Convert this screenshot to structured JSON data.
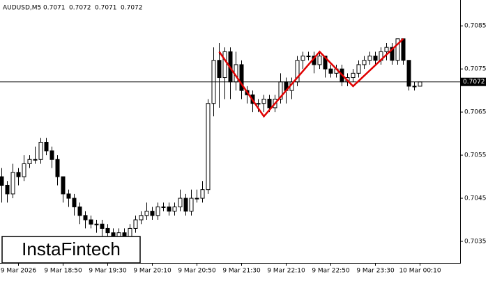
{
  "chart_data": {
    "type": "candlestick",
    "title": "AUDUSD,M5",
    "header_values": [
      0.7071,
      0.7072,
      0.7071,
      0.7072
    ],
    "watermark": "InstaFintech",
    "categories": [
      null,
      null,
      null,
      "9 Mar 2026",
      null,
      null,
      null,
      null,
      null,
      null,
      null,
      "9 Mar 18:50",
      null,
      null,
      null,
      null,
      null,
      null,
      null,
      "9 Mar 19:30",
      null,
      null,
      null,
      null,
      null,
      null,
      null,
      "9 Mar 20:10",
      null,
      null,
      null,
      null,
      null,
      null,
      null,
      "9 Mar 20:50",
      null,
      null,
      null,
      null,
      null,
      null,
      null,
      "9 Mar 21:30",
      null,
      null,
      null,
      null,
      null,
      null,
      null,
      "9 Mar 22:10",
      null,
      null,
      null,
      null,
      null,
      null,
      null,
      "9 Mar 22:50",
      null,
      null,
      null,
      null,
      null,
      null,
      null,
      "9 Mar 23:30",
      null,
      null,
      null,
      null,
      null,
      null,
      null,
      "10 Mar 00:10"
    ],
    "open": [
      0.705,
      0.7048,
      0.7046,
      0.7051,
      0.705,
      0.7053,
      0.7054,
      0.7054,
      0.7058,
      0.7056,
      0.7054,
      0.705,
      0.7046,
      0.7045,
      0.7043,
      0.7041,
      0.704,
      0.7039,
      0.7039,
      0.7038,
      0.7037,
      0.7036,
      0.7037,
      0.7036,
      0.7038,
      0.704,
      0.7041,
      0.7042,
      0.7041,
      0.7043,
      0.7043,
      0.7042,
      0.7043,
      0.7045,
      0.7042,
      0.7045,
      0.7045,
      0.7047,
      0.7067,
      0.7077,
      0.7073,
      0.7079,
      0.7072,
      0.7076,
      0.707,
      0.7069,
      0.7067,
      0.7067,
      0.7068,
      0.7066,
      0.7068,
      0.7072,
      0.707,
      0.7072,
      0.7077,
      0.7078,
      0.7078,
      0.7076,
      0.7078,
      0.7075,
      0.7074,
      0.7075,
      0.7072,
      0.7073,
      0.7074,
      0.7076,
      0.7077,
      0.7078,
      0.7077,
      0.7079,
      0.708,
      0.7077,
      0.7082,
      0.7077,
      0.7071,
      0.7071
    ],
    "high": [
      0.7052,
      0.7049,
      0.7053,
      0.7052,
      0.7055,
      0.7055,
      0.7057,
      0.7059,
      0.7059,
      0.7057,
      0.7055,
      0.705,
      0.7047,
      0.7046,
      0.7044,
      0.7042,
      0.7041,
      0.704,
      0.704,
      0.7039,
      0.7038,
      0.7038,
      0.7038,
      0.7039,
      0.7041,
      0.7042,
      0.7044,
      0.7043,
      0.7044,
      0.7044,
      0.7044,
      0.7044,
      0.7047,
      0.7046,
      0.7047,
      0.7047,
      0.7049,
      0.7068,
      0.708,
      0.7081,
      0.708,
      0.708,
      0.7079,
      0.7077,
      0.7071,
      0.707,
      0.7068,
      0.7069,
      0.7069,
      0.7069,
      0.7074,
      0.7073,
      0.7073,
      0.7078,
      0.7079,
      0.7079,
      0.7079,
      0.7079,
      0.7078,
      0.7076,
      0.7076,
      0.7076,
      0.7074,
      0.7075,
      0.7077,
      0.7078,
      0.7079,
      0.7079,
      0.708,
      0.7081,
      0.7081,
      0.7082,
      0.7082,
      0.7077,
      0.7072,
      0.7072
    ],
    "low": [
      0.7044,
      0.7044,
      0.7045,
      0.7048,
      0.7049,
      0.7052,
      0.7053,
      0.7053,
      0.7055,
      0.7052,
      0.7048,
      0.7044,
      0.7043,
      0.7041,
      0.7039,
      0.7038,
      0.7038,
      0.7037,
      0.7036,
      0.7035,
      0.7034,
      0.7035,
      0.7034,
      0.7035,
      0.7037,
      0.7039,
      0.704,
      0.704,
      0.704,
      0.7042,
      0.7041,
      0.7041,
      0.7042,
      0.7041,
      0.7041,
      0.7044,
      0.7044,
      0.7046,
      0.7064,
      0.7066,
      0.7068,
      0.7068,
      0.707,
      0.7068,
      0.7067,
      0.7065,
      0.7065,
      0.7065,
      0.7065,
      0.7065,
      0.7067,
      0.7067,
      0.7068,
      0.7071,
      0.7075,
      0.7077,
      0.7074,
      0.7075,
      0.7073,
      0.7073,
      0.7073,
      0.7071,
      0.7071,
      0.7072,
      0.7073,
      0.7075,
      0.7076,
      0.7076,
      0.7076,
      0.7077,
      0.7076,
      0.7076,
      0.7076,
      0.707,
      0.707,
      0.7071
    ],
    "close": [
      0.7048,
      0.7046,
      0.7051,
      0.705,
      0.7053,
      0.7054,
      0.7054,
      0.7058,
      0.7056,
      0.7054,
      0.705,
      0.7046,
      0.7045,
      0.7043,
      0.7041,
      0.704,
      0.7039,
      0.7039,
      0.7038,
      0.7037,
      0.7036,
      0.7037,
      0.7036,
      0.7038,
      0.704,
      0.7041,
      0.7042,
      0.7041,
      0.7043,
      0.7043,
      0.7042,
      0.7043,
      0.7045,
      0.7042,
      0.7045,
      0.7045,
      0.7047,
      0.7067,
      0.7077,
      0.7073,
      0.7079,
      0.7072,
      0.7076,
      0.707,
      0.7069,
      0.7067,
      0.7067,
      0.7068,
      0.7066,
      0.7068,
      0.7072,
      0.707,
      0.7072,
      0.7077,
      0.7078,
      0.7078,
      0.7076,
      0.7078,
      0.7075,
      0.7074,
      0.7075,
      0.7072,
      0.7073,
      0.7074,
      0.7076,
      0.7077,
      0.7078,
      0.7077,
      0.7079,
      0.708,
      0.7077,
      0.7082,
      0.7077,
      0.7071,
      0.7071,
      0.7072
    ],
    "up_color": "#ffffff",
    "down_color": "#000000",
    "price_line": 0.7072,
    "pattern": {
      "color": "#e00000",
      "x": [
        39,
        47,
        57,
        63,
        72
      ],
      "values": [
        0.7079,
        0.7064,
        0.7079,
        0.7071,
        0.7082
      ]
    },
    "ylim": [
      0.703,
      0.7091
    ],
    "yticks": [
      0.7035,
      0.7045,
      0.7055,
      0.7065,
      0.7075,
      0.7085
    ]
  }
}
